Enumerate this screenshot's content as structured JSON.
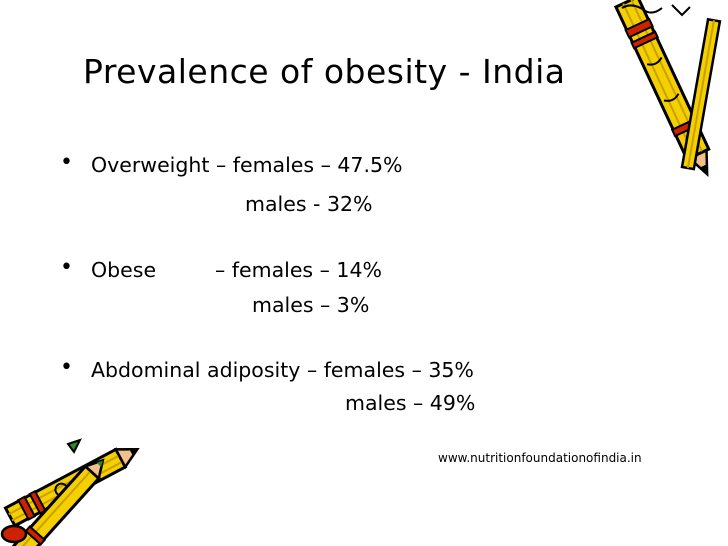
{
  "slide": {
    "title": "Prevalence of obesity - India",
    "bullets": [
      {
        "label": "Overweight",
        "first_line": "– females – 47.5%",
        "second_line": "males - 32%"
      },
      {
        "label": "Obese",
        "first_line": "– females – 14%",
        "second_line": "males – 3%"
      },
      {
        "label": "Abdominal adiposity",
        "first_line": "– females – 35%",
        "second_line": "males – 49%"
      }
    ],
    "bullet_glyph": "•",
    "source_url": "www.nutritionfoundationofindia.in"
  },
  "decorations": {
    "top_right": "pencil-clipart",
    "bottom_left": "pencils-clipart",
    "colors": {
      "pencil_body": "#f5d000",
      "pencil_band": "#cc2200",
      "outline": "#000000"
    }
  }
}
